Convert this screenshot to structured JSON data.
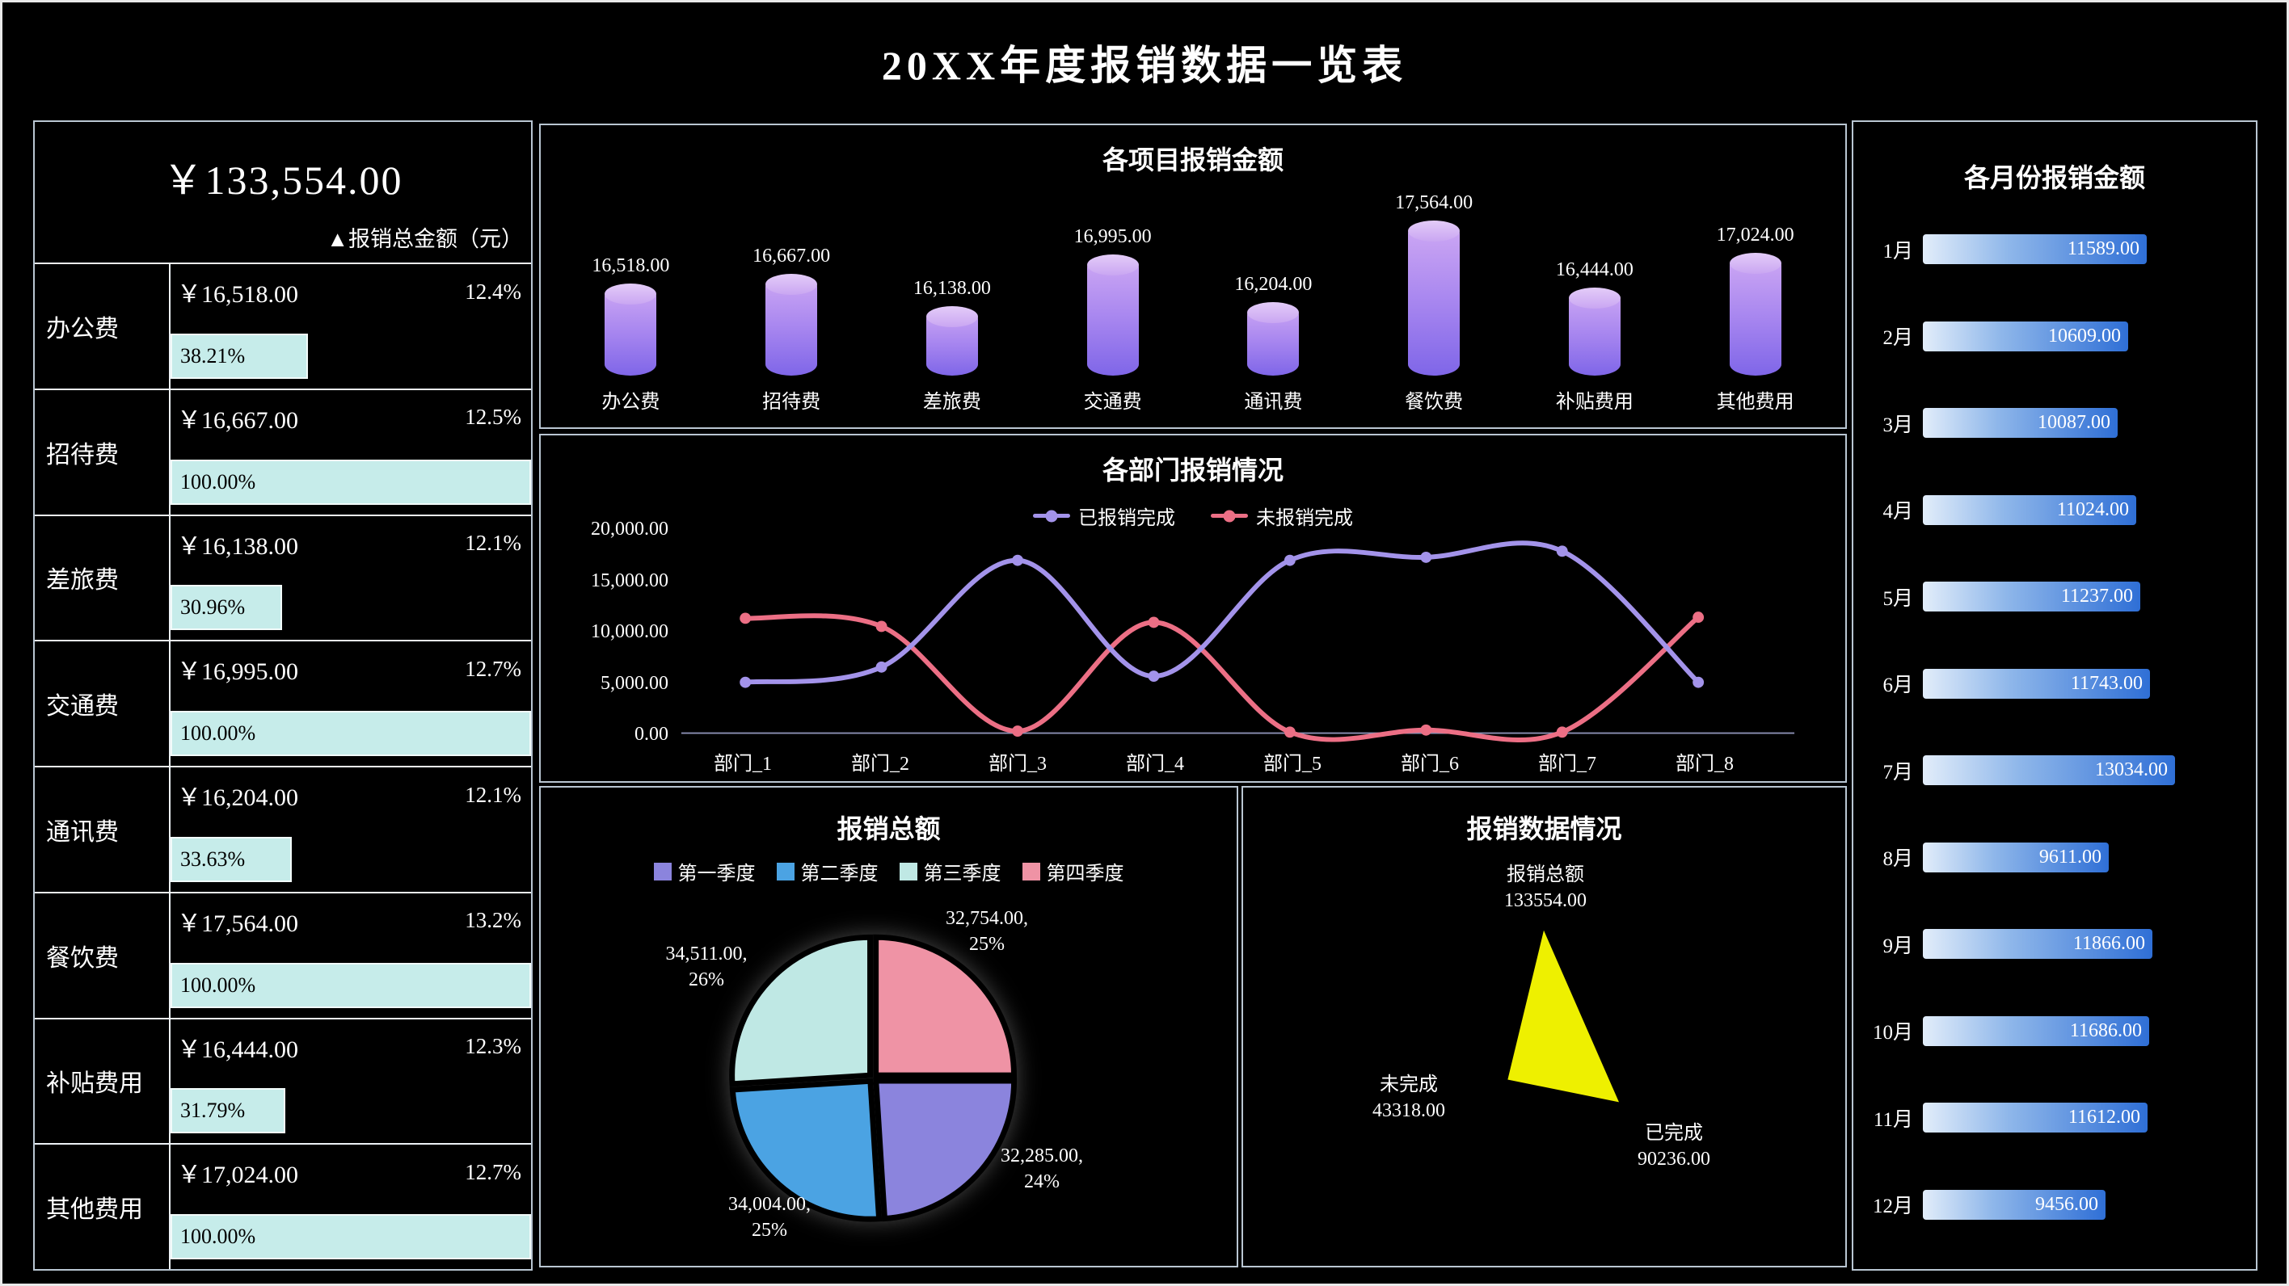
{
  "page": {
    "title": "20XX年度报销数据一览表"
  },
  "summary": {
    "total": "￥133,554.00",
    "total_caption": "▲报销总金额（元）",
    "rows": [
      {
        "name": "办公费",
        "amount": "￥16,518.00",
        "ratio": "12.4%",
        "progress_label": "38.21%",
        "progress": 38.21
      },
      {
        "name": "招待费",
        "amount": "￥16,667.00",
        "ratio": "12.5%",
        "progress_label": "100.00%",
        "progress": 100
      },
      {
        "name": "差旅费",
        "amount": "￥16,138.00",
        "ratio": "12.1%",
        "progress_label": "30.96%",
        "progress": 30.96
      },
      {
        "name": "交通费",
        "amount": "￥16,995.00",
        "ratio": "12.7%",
        "progress_label": "100.00%",
        "progress": 100
      },
      {
        "name": "通讯费",
        "amount": "￥16,204.00",
        "ratio": "12.1%",
        "progress_label": "33.63%",
        "progress": 33.63
      },
      {
        "name": "餐饮费",
        "amount": "￥17,564.00",
        "ratio": "13.2%",
        "progress_label": "100.00%",
        "progress": 100
      },
      {
        "name": "补贴费用",
        "amount": "￥16,444.00",
        "ratio": "12.3%",
        "progress_label": "31.79%",
        "progress": 31.79
      },
      {
        "name": "其他费用",
        "amount": "￥17,024.00",
        "ratio": "12.7%",
        "progress_label": "100.00%",
        "progress": 100
      }
    ]
  },
  "chart_data": [
    {
      "id": "project_bars",
      "type": "bar",
      "title": "各项目报销金额",
      "categories": [
        "办公费",
        "招待费",
        "差旅费",
        "交通费",
        "通讯费",
        "餐饮费",
        "补贴费用",
        "其他费用"
      ],
      "values": [
        16518,
        16667,
        16138,
        16995,
        16204,
        17564,
        16444,
        17024
      ],
      "value_labels": [
        "16,518.00",
        "16,667.00",
        "16,138.00",
        "16,995.00",
        "16,204.00",
        "17,564.00",
        "16,444.00",
        "17,024.00"
      ],
      "baseline": 15000
    },
    {
      "id": "department_lines",
      "type": "line",
      "title": "各部门报销情况",
      "categories": [
        "部门_1",
        "部门_2",
        "部门_3",
        "部门_4",
        "部门_5",
        "部门_6",
        "部门_7",
        "部门_8"
      ],
      "series": [
        {
          "name": "已报销完成",
          "color": "#a393ea",
          "values": [
            5000,
            6500,
            17000,
            5600,
            17000,
            17300,
            17900,
            5000
          ]
        },
        {
          "name": "未报销完成",
          "color": "#ec6f85",
          "values": [
            11300,
            10500,
            200,
            10900,
            100,
            300,
            100,
            11400
          ]
        }
      ],
      "ylim": [
        0,
        20000
      ],
      "y_ticks": [
        "0.00",
        "5,000.00",
        "10,000.00",
        "15,000.00",
        "20,000.00"
      ],
      "legend_position": "top"
    },
    {
      "id": "quarter_pie",
      "type": "pie",
      "title": "报销总额",
      "legend": [
        {
          "name": "第一季度",
          "color": "#8b84dd"
        },
        {
          "name": "第二季度",
          "color": "#4ba3e3"
        },
        {
          "name": "第三季度",
          "color": "#bfe8e4"
        },
        {
          "name": "第四季度",
          "color": "#ef93a5"
        }
      ],
      "slices_draw_order": [
        {
          "name": "第四季度",
          "value": 32754,
          "pct": 25,
          "color": "#ef93a5",
          "label": "32,754.00,",
          "pct_label": "25%"
        },
        {
          "name": "第一季度",
          "value": 32285,
          "pct": 24,
          "color": "#8b84dd",
          "label": "32,285.00,",
          "pct_label": "24%"
        },
        {
          "name": "第二季度",
          "value": 34004,
          "pct": 25,
          "color": "#4ba3e3",
          "label": "34,004.00,",
          "pct_label": "25%"
        },
        {
          "name": "第三季度",
          "value": 34511,
          "pct": 26,
          "color": "#bfe8e4",
          "label": "34,511.00,",
          "pct_label": "26%"
        }
      ]
    },
    {
      "id": "status_radar",
      "type": "radar",
      "title": "报销数据情况",
      "axes": [
        {
          "name": "报销总额",
          "value": 133554,
          "label": "报销总额",
          "value_label": "133554.00"
        },
        {
          "name": "已完成",
          "value": 90236,
          "label": "已完成",
          "value_label": "90236.00"
        },
        {
          "name": "未完成",
          "value": 43318,
          "label": "未完成",
          "value_label": "43318.00"
        }
      ],
      "fill_color": "#eef000"
    },
    {
      "id": "month_bars",
      "type": "bar",
      "orientation": "horizontal",
      "title": "各月份报销金额",
      "categories": [
        "1月",
        "2月",
        "3月",
        "4月",
        "5月",
        "6月",
        "7月",
        "8月",
        "9月",
        "10月",
        "11月",
        "12月"
      ],
      "values": [
        11589,
        10609,
        10087,
        11024,
        11237,
        11743,
        13034,
        9611,
        11866,
        11686,
        11612,
        9456
      ],
      "value_labels": [
        "11589.00",
        "10609.00",
        "10087.00",
        "11024.00",
        "11237.00",
        "11743.00",
        "13034.00",
        "9611.00",
        "11866.00",
        "11686.00",
        "11612.00",
        "9456.00"
      ]
    }
  ]
}
